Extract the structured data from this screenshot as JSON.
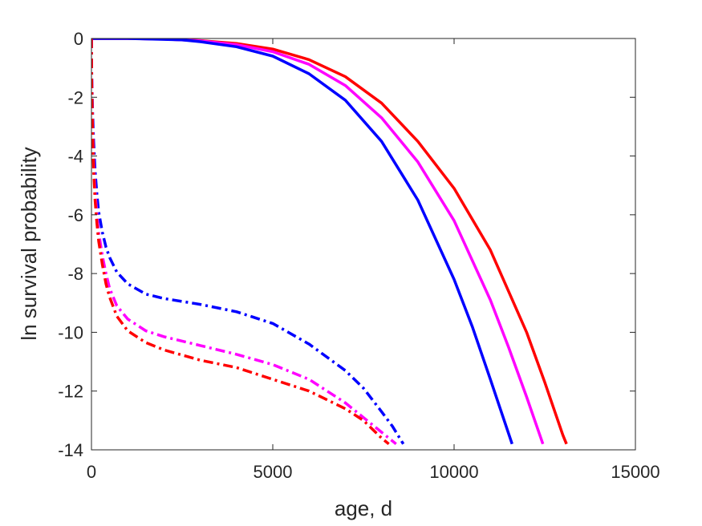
{
  "chart_data": {
    "type": "line",
    "xlabel": "age, d",
    "ylabel": "ln survival probability",
    "xlim": [
      0,
      15000
    ],
    "ylim": [
      -14,
      0
    ],
    "xticks": [
      0,
      5000,
      10000,
      15000
    ],
    "yticks": [
      0,
      -2,
      -4,
      -6,
      -8,
      -10,
      -12,
      -14
    ],
    "grid": false,
    "series": [
      {
        "color": "#ff0000",
        "style": "solid",
        "x": [
          0,
          1000,
          2000,
          3000,
          4000,
          5000,
          6000,
          7000,
          8000,
          9000,
          10000,
          11000,
          12000,
          12500,
          13000,
          13100
        ],
        "y": [
          0,
          0,
          -0.02,
          -0.07,
          -0.17,
          -0.36,
          -0.72,
          -1.3,
          -2.2,
          -3.5,
          -5.1,
          -7.2,
          -10.0,
          -11.7,
          -13.5,
          -13.8
        ]
      },
      {
        "color": "#ff00ff",
        "style": "solid",
        "x": [
          0,
          1000,
          2000,
          3000,
          4000,
          5000,
          6000,
          7000,
          8000,
          9000,
          10000,
          11000,
          11500,
          12000,
          12450
        ],
        "y": [
          0,
          0,
          -0.02,
          -0.08,
          -0.21,
          -0.45,
          -0.88,
          -1.6,
          -2.7,
          -4.2,
          -6.2,
          -8.9,
          -10.5,
          -12.2,
          -13.8
        ]
      },
      {
        "color": "#0000ff",
        "style": "solid",
        "x": [
          0,
          1000,
          2000,
          2500,
          3000,
          4000,
          5000,
          6000,
          7000,
          8000,
          9000,
          10000,
          10500,
          11000,
          11600
        ],
        "y": [
          0,
          0,
          -0.03,
          -0.05,
          -0.11,
          -0.28,
          -0.6,
          -1.2,
          -2.1,
          -3.5,
          -5.5,
          -8.2,
          -9.8,
          -11.6,
          -13.8
        ]
      },
      {
        "color": "#0000ff",
        "style": "dashdot",
        "x": [
          0,
          5,
          30,
          60,
          100,
          150,
          200,
          300,
          400,
          500,
          700,
          1000,
          1500,
          2000,
          3000,
          4000,
          5000,
          6000,
          7000,
          7500,
          8000,
          8300,
          8600
        ],
        "y": [
          0,
          -1.0,
          -2.5,
          -3.5,
          -4.5,
          -5.3,
          -5.9,
          -6.6,
          -7.1,
          -7.45,
          -7.95,
          -8.35,
          -8.7,
          -8.85,
          -9.05,
          -9.3,
          -9.7,
          -10.4,
          -11.3,
          -11.9,
          -12.7,
          -13.2,
          -13.8
        ]
      },
      {
        "color": "#ff00ff",
        "style": "dashdot",
        "x": [
          0,
          5,
          30,
          60,
          100,
          150,
          200,
          300,
          400,
          500,
          700,
          1000,
          1500,
          2000,
          3000,
          4000,
          5000,
          6000,
          7000,
          7500,
          8000,
          8400
        ],
        "y": [
          0,
          -1.2,
          -3.0,
          -4.2,
          -5.2,
          -6.0,
          -6.6,
          -7.4,
          -8.0,
          -8.5,
          -9.1,
          -9.55,
          -9.95,
          -10.15,
          -10.45,
          -10.75,
          -11.1,
          -11.6,
          -12.4,
          -12.9,
          -13.4,
          -13.8
        ]
      },
      {
        "color": "#ff0000",
        "style": "dashdot",
        "x": [
          0,
          5,
          30,
          60,
          100,
          150,
          200,
          300,
          400,
          500,
          700,
          1000,
          1500,
          2000,
          3000,
          4000,
          5000,
          6000,
          7000,
          7500,
          8000,
          8200
        ],
        "y": [
          0,
          -1.3,
          -3.2,
          -4.5,
          -5.5,
          -6.3,
          -6.9,
          -7.7,
          -8.35,
          -8.8,
          -9.45,
          -9.95,
          -10.35,
          -10.6,
          -10.95,
          -11.2,
          -11.6,
          -12.0,
          -12.6,
          -13.0,
          -13.6,
          -13.8
        ]
      }
    ]
  }
}
